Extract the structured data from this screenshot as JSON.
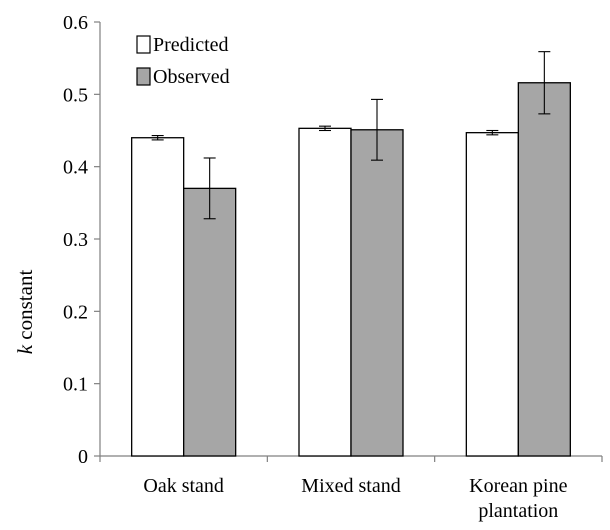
{
  "chart_data": {
    "type": "bar",
    "categories": [
      "Oak stand",
      "Mixed stand",
      "Korean pine plantation"
    ],
    "category_label_lines": [
      [
        "Oak stand"
      ],
      [
        "Mixed stand"
      ],
      [
        "Korean pine",
        "plantation"
      ]
    ],
    "series": [
      {
        "name": "Predicted",
        "color": "#ffffff",
        "values": [
          0.44,
          0.453,
          0.447
        ],
        "errors": [
          0.003,
          0.003,
          0.003
        ]
      },
      {
        "name": "Observed",
        "color": "#a6a6a6",
        "values": [
          0.37,
          0.451,
          0.516
        ],
        "errors": [
          0.042,
          0.042,
          0.043
        ]
      }
    ],
    "ylabel_italic": "k",
    "ylabel_rest": " constant",
    "ylim": [
      0,
      0.6
    ],
    "yticks": [
      "0",
      "0.1",
      "0.2",
      "0.3",
      "0.4",
      "0.5",
      "0.6"
    ],
    "grid": false,
    "legend_position": "top-left"
  }
}
